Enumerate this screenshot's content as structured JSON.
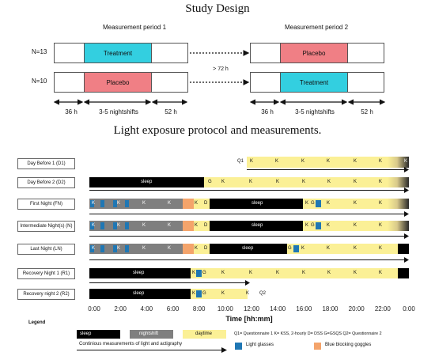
{
  "study": {
    "title": "Study Design",
    "period1_label": "Measurement period 1",
    "period2_label": "Measurement period 2",
    "group1_label": "N=13",
    "group2_label": "N=10",
    "treatment_label": "Treatment",
    "placebo_label": "Placebo",
    "washout_label": "> 72 h",
    "pre_label": "36 h",
    "shifts_label": "3-5 nightshifts",
    "post_label": "52 h",
    "colors": {
      "treatment": "#33cfe0",
      "placebo": "#f07f85"
    }
  },
  "protocol": {
    "title": "Light exposure protocol and measurements.",
    "rows": [
      "Day Before 1 (D1)",
      "Day Before 2 (D2)",
      "First Night (FN)",
      "Intermediate Night(s) (N)",
      "Last Night (LN)",
      "Recovery Night 1 (R1)",
      "Recovery night 2 (R2)"
    ],
    "sleep_text": "sleep",
    "q1": "Q1",
    "q2": "Q2",
    "k": "K",
    "g": "G",
    "d": "D",
    "ticks": [
      "0:00",
      "2:00",
      "4:00",
      "6:00",
      "8:00",
      "10:00",
      "12:00",
      "14:00",
      "16:00",
      "18:00",
      "20:00",
      "22:00",
      "0:00"
    ],
    "xlabel": "Time [hh:mm]"
  },
  "legend": {
    "title": "Legend",
    "sleep": "sleep",
    "nightshift": "nightshift",
    "daytime": "daytime",
    "abbrev": "Q1= Questionnaire 1   K= KSS, 2-hourly   D= DSS   G=GSQS   Q2= Questionnaire 2",
    "light_glasses": "Light glasses",
    "blue_goggles": "Blue blocking goggles",
    "continuous": "Continious measurements of light and actigraphy",
    "colors": {
      "sleep": "#000000",
      "nightshift": "#7f7f7f",
      "daytime": "#fbf096",
      "glasses": "#1f77b4",
      "goggles": "#f4a46b"
    }
  }
}
